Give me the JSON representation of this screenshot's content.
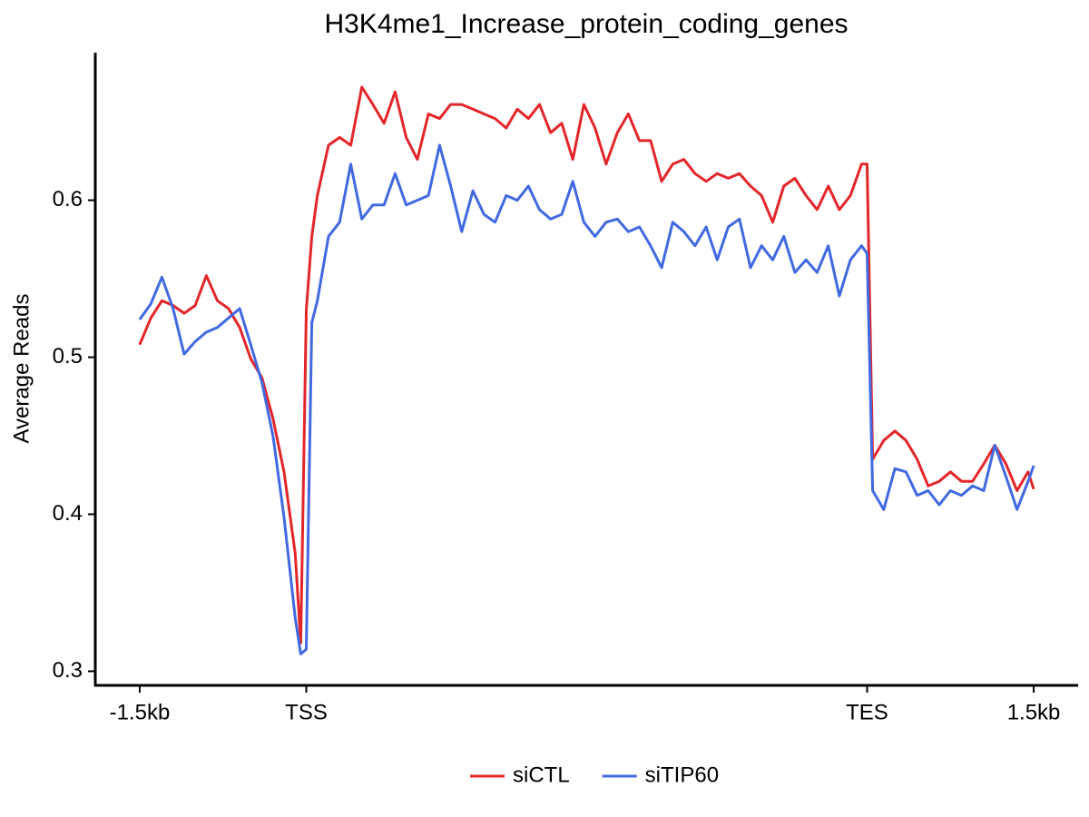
{
  "chart_data": {
    "type": "line",
    "title": "H3K4me1_Increase_protein_coding_genes",
    "y_label": "Average Reads",
    "x": [
      0,
      2,
      4,
      6,
      8,
      10,
      12,
      14,
      16,
      18,
      20,
      22,
      24,
      26,
      28,
      29,
      30,
      31,
      32,
      34,
      36,
      38,
      40,
      42,
      44,
      46,
      48,
      50,
      52,
      54,
      56,
      58,
      60,
      62,
      64,
      66,
      68,
      70,
      72,
      74,
      76,
      78,
      80,
      82,
      84,
      86,
      88,
      90,
      92,
      94,
      96,
      98,
      100,
      102,
      104,
      106,
      108,
      110,
      112,
      114,
      116,
      118,
      120,
      122,
      124,
      126,
      128,
      130,
      131,
      132,
      134,
      136,
      138,
      140,
      142,
      144,
      146,
      148,
      150,
      152,
      154,
      156,
      158,
      160,
      161
    ],
    "series": [
      {
        "name": "siCTL",
        "color": "#e3262a",
        "values": [
          0.508,
          0.525,
          0.536,
          0.533,
          0.528,
          0.533,
          0.552,
          0.536,
          0.531,
          0.519,
          0.499,
          0.487,
          0.461,
          0.427,
          0.375,
          0.318,
          0.53,
          0.577,
          0.603,
          0.635,
          0.64,
          0.635,
          0.672,
          0.661,
          0.649,
          0.669,
          0.64,
          0.626,
          0.655,
          0.652,
          0.661,
          0.661,
          0.658,
          0.655,
          0.652,
          0.646,
          0.658,
          0.652,
          0.661,
          0.643,
          0.649,
          0.626,
          0.661,
          0.646,
          0.623,
          0.643,
          0.655,
          0.638,
          0.638,
          0.612,
          0.623,
          0.626,
          0.617,
          0.612,
          0.617,
          0.614,
          0.617,
          0.609,
          0.603,
          0.586,
          0.609,
          0.614,
          0.603,
          0.594,
          0.609,
          0.594,
          0.603,
          0.623,
          0.623,
          0.435,
          0.447,
          0.453,
          0.447,
          0.435,
          0.418,
          0.421,
          0.427,
          0.421,
          0.421,
          0.432,
          0.444,
          0.432,
          0.415,
          0.427,
          0.416
        ]
      },
      {
        "name": "siTIP60",
        "color": "#4169e1",
        "values": [
          0.524,
          0.534,
          0.551,
          0.531,
          0.502,
          0.51,
          0.516,
          0.519,
          0.525,
          0.531,
          0.508,
          0.484,
          0.45,
          0.398,
          0.334,
          0.311,
          0.314,
          0.522,
          0.536,
          0.577,
          0.586,
          0.623,
          0.588,
          0.597,
          0.597,
          0.617,
          0.597,
          0.6,
          0.603,
          0.635,
          0.609,
          0.58,
          0.606,
          0.591,
          0.586,
          0.603,
          0.6,
          0.609,
          0.594,
          0.588,
          0.591,
          0.612,
          0.586,
          0.577,
          0.586,
          0.588,
          0.58,
          0.583,
          0.571,
          0.557,
          0.586,
          0.58,
          0.571,
          0.583,
          0.562,
          0.583,
          0.588,
          0.557,
          0.571,
          0.562,
          0.577,
          0.554,
          0.562,
          0.554,
          0.571,
          0.539,
          0.562,
          0.571,
          0.566,
          0.415,
          0.403,
          0.429,
          0.427,
          0.412,
          0.415,
          0.406,
          0.415,
          0.412,
          0.418,
          0.415,
          0.444,
          0.424,
          0.403,
          0.421,
          0.431
        ]
      }
    ],
    "xlim": [
      -8,
      169
    ],
    "xticks": [
      {
        "value": 0,
        "label": "-1.5kb"
      },
      {
        "value": 30,
        "label": "TSS"
      },
      {
        "value": 131,
        "label": "TES"
      },
      {
        "value": 161,
        "label": "1.5kb"
      }
    ],
    "ylim": [
      0.291,
      0.694
    ],
    "yticks": [
      0.3,
      0.4,
      0.5,
      0.6
    ],
    "grid": false,
    "legend": "bottom"
  }
}
